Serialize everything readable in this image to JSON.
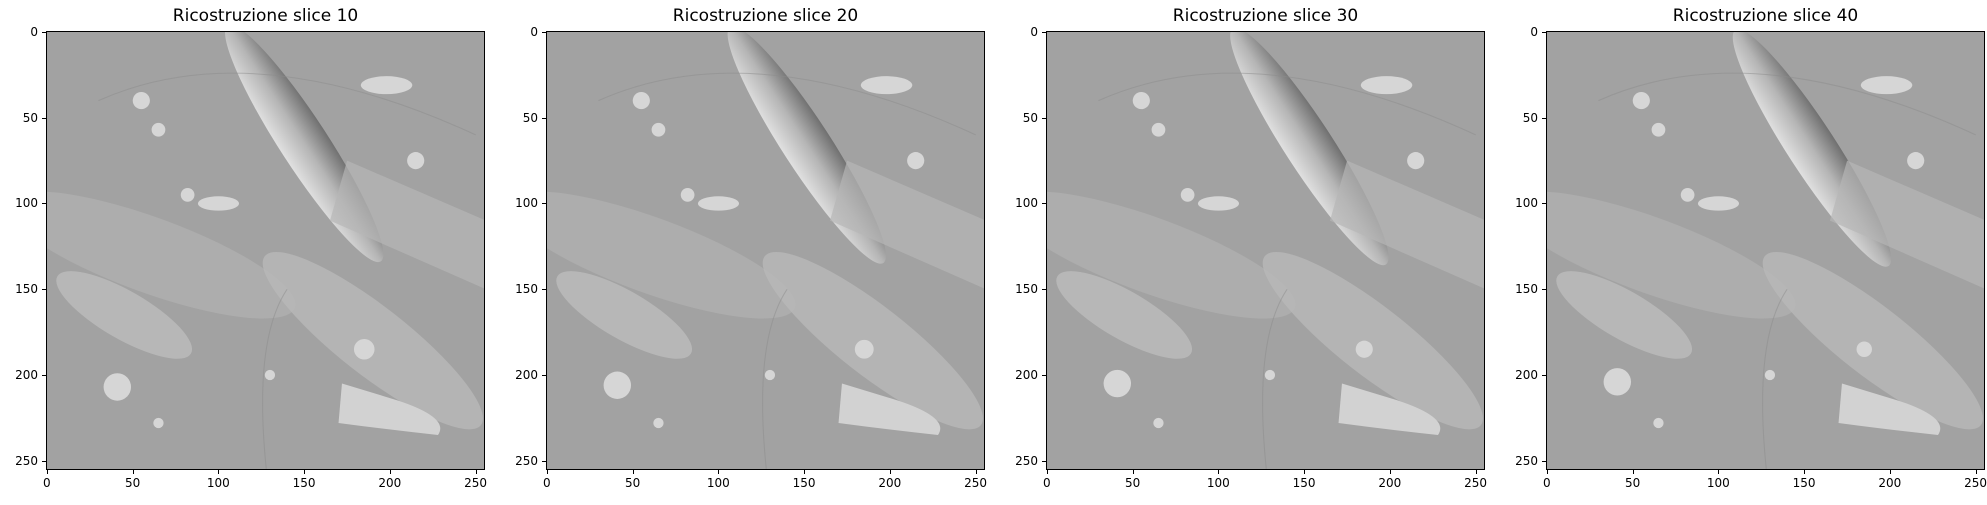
{
  "panels": [
    {
      "title": "Ricostruzione slice 10"
    },
    {
      "title": "Ricostruzione slice 20"
    },
    {
      "title": "Ricostruzione slice 30"
    },
    {
      "title": "Ricostruzione slice 40"
    }
  ],
  "x_ticks": [
    "0",
    "50",
    "100",
    "150",
    "200",
    "250"
  ],
  "y_ticks": [
    "0",
    "50",
    "100",
    "150",
    "200",
    "250"
  ],
  "colors": {
    "background_gray": "#a2a2a2",
    "feature_light": "#d6d6d6",
    "feature_dark": "#5a5a5a"
  }
}
